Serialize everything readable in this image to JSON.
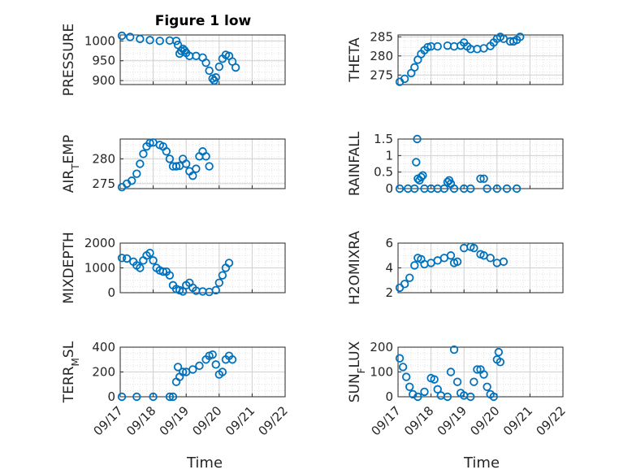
{
  "figure": {
    "title": "Figure 1 low",
    "x_label": "Time",
    "x_ticks": [
      "09/17",
      "09/18",
      "09/19",
      "09/20",
      "09/21",
      "09/22"
    ],
    "marker_color": "#0072BD",
    "grid": "dotted minor + major",
    "ylabels": [
      {
        "parts": [
          "PRESSURE"
        ]
      },
      {
        "parts": [
          "THETA"
        ]
      },
      {
        "parts": [
          "AIR",
          "T",
          "EMP"
        ]
      },
      {
        "parts": [
          "RAINFALL"
        ]
      },
      {
        "parts": [
          "MIXDEPTH"
        ]
      },
      {
        "parts": [
          "H2OMIXRA"
        ]
      },
      {
        "parts": [
          "TERR",
          "M",
          "SL"
        ]
      },
      {
        "parts": [
          "SUN",
          "F",
          "LUX"
        ]
      }
    ],
    "ytick_labels": [
      [
        "1000",
        "950",
        "900"
      ],
      [
        "285",
        "280",
        "275"
      ],
      [
        "280",
        "275"
      ],
      [
        "1.5",
        "1",
        "0.5",
        "0"
      ],
      [
        "2000",
        "1000",
        "0"
      ],
      [
        "6",
        "4",
        "2"
      ],
      [
        "400",
        "200",
        "0"
      ],
      [
        "200",
        "100",
        "0"
      ]
    ]
  },
  "chart_data": [
    {
      "type": "scatter",
      "ylabel": "PRESSURE",
      "xlim": [
        0,
        5
      ],
      "ylim": [
        890,
        1015
      ],
      "yticks": [
        900,
        950,
        1000
      ],
      "points": [
        [
          0.05,
          1013
        ],
        [
          0.3,
          1010
        ],
        [
          0.6,
          1005
        ],
        [
          0.9,
          1002
        ],
        [
          1.2,
          1000
        ],
        [
          1.5,
          1001
        ],
        [
          1.7,
          1000
        ],
        [
          1.75,
          990
        ],
        [
          1.8,
          968
        ],
        [
          1.85,
          975
        ],
        [
          1.9,
          980
        ],
        [
          1.95,
          976
        ],
        [
          2.0,
          970
        ],
        [
          2.1,
          962
        ],
        [
          2.3,
          962
        ],
        [
          2.5,
          958
        ],
        [
          2.6,
          945
        ],
        [
          2.7,
          925
        ],
        [
          2.8,
          905
        ],
        [
          2.85,
          900
        ],
        [
          2.9,
          908
        ],
        [
          3.0,
          935
        ],
        [
          3.1,
          955
        ],
        [
          3.2,
          965
        ],
        [
          3.3,
          962
        ],
        [
          3.4,
          948
        ],
        [
          3.5,
          933
        ]
      ]
    },
    {
      "type": "scatter",
      "ylabel": "THETA",
      "xlim": [
        0,
        5
      ],
      "ylim": [
        272.5,
        285.5
      ],
      "yticks": [
        275,
        280,
        285
      ],
      "points": [
        [
          0.05,
          273.2
        ],
        [
          0.2,
          274
        ],
        [
          0.4,
          275.5
        ],
        [
          0.5,
          277
        ],
        [
          0.6,
          279
        ],
        [
          0.7,
          280.5
        ],
        [
          0.8,
          281.5
        ],
        [
          0.9,
          282.3
        ],
        [
          1.0,
          282.5
        ],
        [
          1.2,
          282.5
        ],
        [
          1.5,
          282.7
        ],
        [
          1.7,
          282.5
        ],
        [
          1.9,
          282.7
        ],
        [
          2.0,
          283.5
        ],
        [
          2.1,
          282.5
        ],
        [
          2.2,
          281.8
        ],
        [
          2.4,
          281.8
        ],
        [
          2.6,
          282
        ],
        [
          2.8,
          282.6
        ],
        [
          2.9,
          283.5
        ],
        [
          3.0,
          284.5
        ],
        [
          3.1,
          285
        ],
        [
          3.2,
          284.5
        ],
        [
          3.4,
          283.8
        ],
        [
          3.5,
          283.8
        ],
        [
          3.6,
          284.2
        ],
        [
          3.7,
          285
        ]
      ]
    },
    {
      "type": "scatter",
      "ylabel": "AIR_TEMP",
      "xlim": [
        0,
        5
      ],
      "ylim": [
        274,
        284
      ],
      "yticks": [
        275,
        280
      ],
      "points": [
        [
          0.05,
          274.3
        ],
        [
          0.2,
          275
        ],
        [
          0.35,
          275.6
        ],
        [
          0.5,
          277
        ],
        [
          0.6,
          279
        ],
        [
          0.7,
          281
        ],
        [
          0.8,
          282.5
        ],
        [
          0.9,
          283.2
        ],
        [
          1.0,
          283.3
        ],
        [
          1.2,
          282.8
        ],
        [
          1.3,
          282.5
        ],
        [
          1.4,
          281.5
        ],
        [
          1.5,
          280
        ],
        [
          1.6,
          278.5
        ],
        [
          1.7,
          278.5
        ],
        [
          1.8,
          278.6
        ],
        [
          1.9,
          280
        ],
        [
          2.0,
          279
        ],
        [
          2.1,
          277.5
        ],
        [
          2.2,
          276.6
        ],
        [
          2.3,
          278
        ],
        [
          2.4,
          280.5
        ],
        [
          2.5,
          281.5
        ],
        [
          2.6,
          280.5
        ],
        [
          2.7,
          278.5
        ]
      ]
    },
    {
      "type": "scatter",
      "ylabel": "RAINFALL",
      "xlim": [
        0,
        5
      ],
      "ylim": [
        0,
        1.5
      ],
      "yticks": [
        0,
        0.5,
        1,
        1.5
      ],
      "points": [
        [
          0.05,
          0
        ],
        [
          0.3,
          0
        ],
        [
          0.5,
          0
        ],
        [
          0.55,
          0.8
        ],
        [
          0.58,
          1.5
        ],
        [
          0.6,
          0.3
        ],
        [
          0.65,
          0.25
        ],
        [
          0.7,
          0.35
        ],
        [
          0.75,
          0.4
        ],
        [
          0.8,
          0
        ],
        [
          1.0,
          0
        ],
        [
          1.2,
          0
        ],
        [
          1.4,
          0
        ],
        [
          1.5,
          0.2
        ],
        [
          1.55,
          0.25
        ],
        [
          1.6,
          0.15
        ],
        [
          1.7,
          0
        ],
        [
          2.0,
          0
        ],
        [
          2.2,
          0
        ],
        [
          2.5,
          0.3
        ],
        [
          2.6,
          0.3
        ],
        [
          2.7,
          0
        ],
        [
          3.0,
          0
        ],
        [
          3.3,
          0
        ],
        [
          3.6,
          0
        ]
      ]
    },
    {
      "type": "scatter",
      "ylabel": "MIXDEPTH",
      "xlim": [
        0,
        5
      ],
      "ylim": [
        0,
        2000
      ],
      "yticks": [
        0,
        1000,
        2000
      ],
      "points": [
        [
          0.05,
          1400
        ],
        [
          0.2,
          1380
        ],
        [
          0.4,
          1250
        ],
        [
          0.5,
          1100
        ],
        [
          0.6,
          1000
        ],
        [
          0.7,
          1300
        ],
        [
          0.8,
          1500
        ],
        [
          0.9,
          1600
        ],
        [
          1.0,
          1300
        ],
        [
          1.1,
          1000
        ],
        [
          1.2,
          900
        ],
        [
          1.3,
          850
        ],
        [
          1.4,
          850
        ],
        [
          1.5,
          700
        ],
        [
          1.6,
          300
        ],
        [
          1.7,
          150
        ],
        [
          1.8,
          100
        ],
        [
          1.9,
          50
        ],
        [
          2.0,
          300
        ],
        [
          2.1,
          400
        ],
        [
          2.2,
          200
        ],
        [
          2.3,
          80
        ],
        [
          2.5,
          50
        ],
        [
          2.7,
          30
        ],
        [
          2.9,
          100
        ],
        [
          3.0,
          400
        ],
        [
          3.1,
          700
        ],
        [
          3.2,
          1000
        ],
        [
          3.3,
          1200
        ]
      ]
    },
    {
      "type": "scatter",
      "ylabel": "H2OMIXRA",
      "xlim": [
        0,
        5
      ],
      "ylim": [
        2,
        6
      ],
      "yticks": [
        2,
        4,
        6
      ],
      "points": [
        [
          0.05,
          2.4
        ],
        [
          0.2,
          2.7
        ],
        [
          0.35,
          3.2
        ],
        [
          0.5,
          4.2
        ],
        [
          0.6,
          4.8
        ],
        [
          0.7,
          4.7
        ],
        [
          0.8,
          4.3
        ],
        [
          1.0,
          4.4
        ],
        [
          1.2,
          4.6
        ],
        [
          1.4,
          4.8
        ],
        [
          1.6,
          5.0
        ],
        [
          1.7,
          4.4
        ],
        [
          1.8,
          4.5
        ],
        [
          2.0,
          5.6
        ],
        [
          2.2,
          5.7
        ],
        [
          2.3,
          5.6
        ],
        [
          2.5,
          5.1
        ],
        [
          2.6,
          5.0
        ],
        [
          2.8,
          4.8
        ],
        [
          3.0,
          4.4
        ],
        [
          3.2,
          4.5
        ]
      ]
    },
    {
      "type": "scatter",
      "ylabel": "TERR_MSL",
      "xlim": [
        0,
        5
      ],
      "ylim": [
        0,
        400
      ],
      "yticks": [
        0,
        200,
        400
      ],
      "points": [
        [
          0.05,
          0
        ],
        [
          0.5,
          0
        ],
        [
          1.0,
          0
        ],
        [
          1.5,
          0
        ],
        [
          1.6,
          0
        ],
        [
          1.7,
          120
        ],
        [
          1.75,
          240
        ],
        [
          1.8,
          160
        ],
        [
          1.9,
          200
        ],
        [
          2.0,
          200
        ],
        [
          2.2,
          220
        ],
        [
          2.4,
          250
        ],
        [
          2.6,
          300
        ],
        [
          2.7,
          330
        ],
        [
          2.8,
          340
        ],
        [
          2.9,
          260
        ],
        [
          3.0,
          180
        ],
        [
          3.1,
          200
        ],
        [
          3.2,
          300
        ],
        [
          3.3,
          330
        ],
        [
          3.4,
          300
        ]
      ]
    },
    {
      "type": "scatter",
      "ylabel": "SUN_FLUX",
      "xlim": [
        0,
        5
      ],
      "ylim": [
        0,
        200
      ],
      "yticks": [
        0,
        100,
        200
      ],
      "points": [
        [
          0.05,
          155
        ],
        [
          0.15,
          120
        ],
        [
          0.25,
          80
        ],
        [
          0.35,
          40
        ],
        [
          0.45,
          10
        ],
        [
          0.6,
          0
        ],
        [
          0.8,
          20
        ],
        [
          1.0,
          75
        ],
        [
          1.1,
          70
        ],
        [
          1.2,
          30
        ],
        [
          1.3,
          5
        ],
        [
          1.5,
          0
        ],
        [
          1.6,
          100
        ],
        [
          1.7,
          190
        ],
        [
          1.8,
          60
        ],
        [
          1.9,
          15
        ],
        [
          2.0,
          5
        ],
        [
          2.2,
          0
        ],
        [
          2.3,
          60
        ],
        [
          2.4,
          110
        ],
        [
          2.5,
          110
        ],
        [
          2.6,
          90
        ],
        [
          2.7,
          40
        ],
        [
          2.8,
          10
        ],
        [
          2.9,
          0
        ],
        [
          3.0,
          150
        ],
        [
          3.05,
          180
        ],
        [
          3.1,
          140
        ]
      ]
    }
  ]
}
